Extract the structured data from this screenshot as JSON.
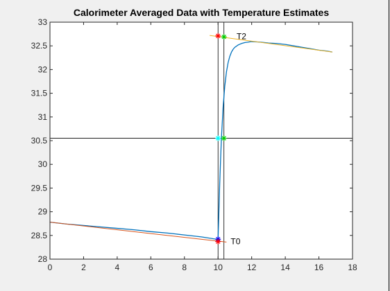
{
  "chart_data": {
    "type": "line",
    "title": "Calorimeter Averaged Data with Temperature Estimates",
    "xlabel": "",
    "ylabel": "",
    "xlim": [
      0,
      18
    ],
    "ylim": [
      28,
      33
    ],
    "xticks": [
      0,
      2,
      4,
      6,
      8,
      10,
      12,
      14,
      16,
      18
    ],
    "yticks": [
      28,
      28.5,
      29,
      29.5,
      30,
      30.5,
      31,
      31.5,
      32,
      32.5,
      33
    ],
    "grid": false,
    "series": [
      {
        "type": "line",
        "color": "#0072bd",
        "x": [
          0,
          1,
          2,
          3,
          4,
          5,
          6,
          7,
          8,
          9,
          9.9,
          10.0,
          10.05,
          10.1,
          10.15,
          10.2,
          10.3,
          10.4,
          10.5,
          10.6,
          10.7,
          10.8,
          10.9,
          11.0,
          11.2,
          11.4,
          11.6,
          11.8,
          12.0,
          12.5,
          13.0,
          13.5,
          14.0,
          14.5,
          15.0,
          15.5,
          16.0,
          16.5,
          16.8
        ],
        "y": [
          28.78,
          28.74,
          28.71,
          28.68,
          28.65,
          28.62,
          28.58,
          28.55,
          28.51,
          28.47,
          28.42,
          28.41,
          29.0,
          29.6,
          30.1,
          30.55,
          31.2,
          31.65,
          31.95,
          32.15,
          32.28,
          32.37,
          32.43,
          32.47,
          32.52,
          32.55,
          32.57,
          32.58,
          32.59,
          32.58,
          32.56,
          32.55,
          32.53,
          32.5,
          32.47,
          32.44,
          32.41,
          32.39,
          32.37
        ]
      },
      {
        "type": "line",
        "color": "#d95319",
        "x": [
          0,
          10.5
        ],
        "y": [
          28.78,
          28.36
        ]
      },
      {
        "type": "line",
        "color": "#edb120",
        "x": [
          9.5,
          16.8
        ],
        "y": [
          32.72,
          32.37
        ]
      }
    ],
    "reference_lines": {
      "vertical_x": [
        10.0,
        10.35
      ],
      "horizontal_y": [
        30.55
      ]
    },
    "markers": [
      {
        "x": 10.0,
        "y": 28.42,
        "color": "#0000ff"
      },
      {
        "x": 10.0,
        "y": 28.37,
        "color": "#ff0000"
      },
      {
        "x": 10.0,
        "y": 32.71,
        "color": "#ff0000"
      },
      {
        "x": 10.35,
        "y": 32.69,
        "color": "#00cc00"
      },
      {
        "x": 10.0,
        "y": 30.55,
        "color": "#00ffff"
      },
      {
        "x": 10.35,
        "y": 30.55,
        "color": "#00cc00"
      }
    ],
    "annotations": [
      {
        "text": "T2",
        "x": 11.1,
        "y": 32.7
      },
      {
        "text": "T0",
        "x": 10.75,
        "y": 28.37
      }
    ]
  }
}
